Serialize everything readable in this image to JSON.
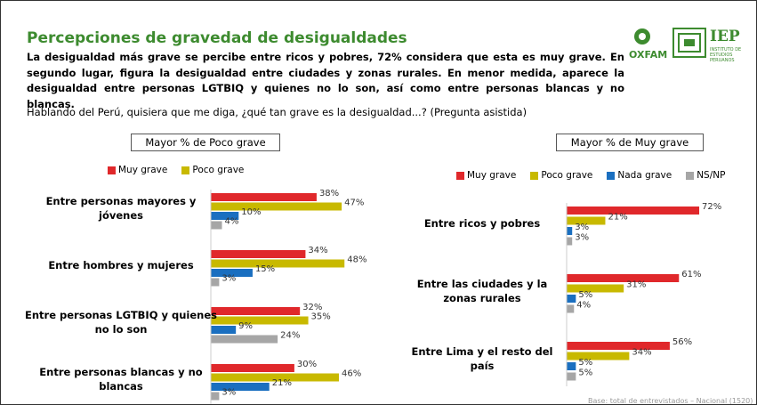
{
  "header": {
    "title": "Percepciones de gravedad de desigualdades",
    "subtitle": "La desigualdad más grave se percibe entre ricos y pobres, 72% considera que esta es muy grave. En segundo lugar, figura la desigualdad entre ciudades y zonas rurales. En menor medida, aparece la desigualdad entre personas LGTBIQ y quienes no lo son, así como entre personas blancas y no blancas.",
    "question": "Hablando del Perú, quisiera que me diga, ¿qué tan grave es la desigualdad...? (Pregunta asistida)"
  },
  "logos": {
    "oxfam": "OXFAM",
    "iep": "IEP",
    "iep_sub": "INSTITUTO DE ESTUDIOS PERUANOS"
  },
  "footnote": "Base: total de entrevistados – Nacional (1520)",
  "chart_data": [
    {
      "type": "bar",
      "orientation": "horizontal",
      "title": "Mayor % de Poco grave",
      "categories": [
        "Entre personas mayores y jóvenes",
        "Entre hombres y mujeres",
        "Entre personas LGTBIQ y quienes no lo son",
        "Entre personas blancas y no blancas"
      ],
      "series": [
        {
          "name": "Muy grave",
          "color": "#e0282b",
          "values": [
            38,
            34,
            32,
            30
          ],
          "value_labels": [
            "38%",
            "34%",
            "32%",
            "30%"
          ]
        },
        {
          "name": "Poco grave",
          "color": "#c8b900",
          "values": [
            47,
            48,
            35,
            46
          ],
          "value_labels": [
            "47%",
            "48%",
            "35%",
            "46%"
          ]
        },
        {
          "color": "#1a6fc0",
          "values": [
            10,
            15,
            9,
            21
          ],
          "value_labels": [
            "10%",
            "15%",
            "9%",
            "21%"
          ]
        },
        {
          "color": "#a6a6a6",
          "values": [
            4,
            3,
            24,
            3
          ],
          "value_labels": [
            "4%",
            "3%",
            "24%",
            "3%"
          ]
        }
      ]
    },
    {
      "type": "bar",
      "orientation": "horizontal",
      "title": "Mayor % de Muy grave",
      "categories": [
        "Entre ricos y pobres",
        "Entre las ciudades y la zonas rurales",
        "Entre Lima y el resto del país"
      ],
      "series": [
        {
          "name": "Muy grave",
          "color": "#e0282b",
          "values": [
            72,
            61,
            56
          ],
          "value_labels": [
            "72%",
            "61%",
            "56%"
          ]
        },
        {
          "name": "Poco grave",
          "color": "#c8b900",
          "values": [
            21,
            31,
            34
          ],
          "value_labels": [
            "21%",
            "31%",
            "34%"
          ]
        },
        {
          "name": "Nada grave",
          "color": "#1a6fc0",
          "values": [
            3,
            5,
            5
          ],
          "value_labels": [
            "3%",
            "5%",
            "5%"
          ]
        },
        {
          "name": "NS/NP",
          "color": "#a6a6a6",
          "values": [
            3,
            4,
            5
          ],
          "value_labels": [
            "3%",
            "4%",
            "5%"
          ]
        }
      ]
    }
  ]
}
